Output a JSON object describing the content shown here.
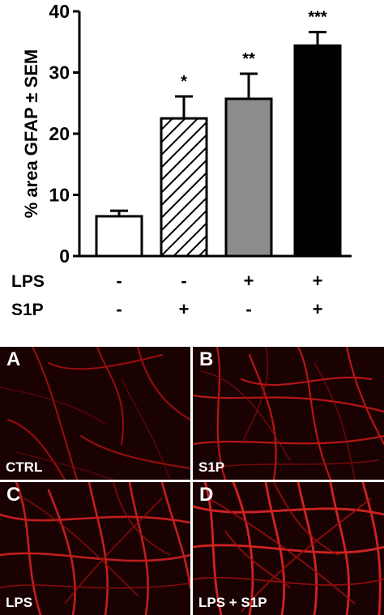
{
  "chart_data": {
    "type": "bar",
    "ylabel": "% area GFAP ± SEM",
    "ylim": [
      0,
      40
    ],
    "yticks": [
      "0",
      "10",
      "20",
      "30",
      "40"
    ],
    "categories": [
      "CTRL",
      "S1P",
      "LPS",
      "LPS + S1P"
    ],
    "values": [
      6.5,
      22.5,
      25.7,
      34.4
    ],
    "errors": [
      0.9,
      3.6,
      4.1,
      2.2
    ],
    "fills": [
      "white",
      "hatched",
      "#8c8c8c",
      "#000000"
    ],
    "significance": [
      "",
      "*",
      "**",
      "***"
    ],
    "treatments": [
      {
        "label": "LPS",
        "signs": [
          "-",
          "-",
          "+",
          "+"
        ]
      },
      {
        "label": "S1P",
        "signs": [
          "-",
          "+",
          "-",
          "+"
        ]
      }
    ]
  },
  "panels": [
    {
      "letter": "A",
      "caption": "CTRL"
    },
    {
      "letter": "B",
      "caption": "S1P"
    },
    {
      "letter": "C",
      "caption": "LPS"
    },
    {
      "letter": "D",
      "caption": "LPS + S1P"
    }
  ]
}
